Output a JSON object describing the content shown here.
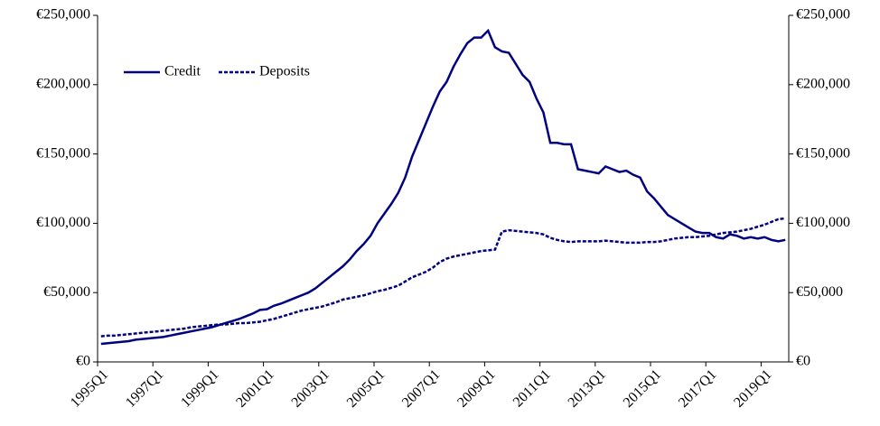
{
  "chart_data": {
    "type": "line",
    "categories": [
      "1995Q1",
      null,
      null,
      null,
      null,
      null,
      null,
      null,
      "1997Q1",
      null,
      null,
      null,
      null,
      null,
      null,
      null,
      "1999Q1",
      null,
      null,
      null,
      null,
      null,
      null,
      null,
      "2001Q1",
      null,
      null,
      null,
      null,
      null,
      null,
      null,
      "2003Q1",
      null,
      null,
      null,
      null,
      null,
      null,
      null,
      "2005Q1",
      null,
      null,
      null,
      null,
      null,
      null,
      null,
      "2007Q1",
      null,
      null,
      null,
      null,
      null,
      null,
      null,
      "2009Q1",
      null,
      null,
      null,
      null,
      null,
      null,
      null,
      "2011Q1",
      null,
      null,
      null,
      null,
      null,
      null,
      null,
      "2013Q1",
      null,
      null,
      null,
      null,
      null,
      null,
      null,
      "2015Q1",
      null,
      null,
      null,
      null,
      null,
      null,
      null,
      "2017Q1",
      null,
      null,
      null,
      null,
      null,
      null,
      null,
      "2019Q1",
      null,
      null,
      null
    ],
    "series": [
      {
        "name": "Credit",
        "color": "#000080",
        "dash": false,
        "values": [
          13000,
          13500,
          14000,
          14500,
          15000,
          16000,
          16500,
          17000,
          17500,
          18000,
          19000,
          20000,
          21000,
          22000,
          23000,
          24000,
          25000,
          26500,
          28000,
          29500,
          31000,
          33000,
          35000,
          37500,
          38000,
          40500,
          42000,
          44000,
          46000,
          48000,
          50000,
          53000,
          57000,
          61000,
          65000,
          69000,
          74000,
          80000,
          85000,
          91000,
          100000,
          107000,
          114000,
          122000,
          133000,
          148000,
          160000,
          172000,
          184000,
          195000,
          202000,
          213000,
          222000,
          230000,
          234000,
          234000,
          239000,
          227000,
          224000,
          223000,
          215000,
          207000,
          202000,
          190000,
          180000,
          158000,
          158000,
          157000,
          157000,
          139000,
          138000,
          137000,
          136000,
          141000,
          139000,
          137000,
          138000,
          135000,
          133000,
          123000,
          118000,
          112000,
          106000,
          103000,
          100000,
          97000,
          94000,
          93000,
          93000,
          90000,
          89000,
          92000,
          91000,
          89000,
          90000,
          89000,
          90000,
          88000,
          87000,
          88000
        ]
      },
      {
        "name": "Deposits",
        "color": "#000080",
        "dash": true,
        "values": [
          18500,
          19000,
          19000,
          19500,
          20000,
          20500,
          21000,
          21500,
          22000,
          22500,
          23000,
          23500,
          24000,
          25000,
          25500,
          26000,
          26500,
          27000,
          27000,
          27500,
          28000,
          28000,
          28500,
          29000,
          30000,
          31000,
          32500,
          34000,
          35500,
          37000,
          38000,
          39000,
          40000,
          41500,
          43000,
          45000,
          46000,
          47000,
          48000,
          49500,
          51000,
          52000,
          53500,
          55000,
          58000,
          61000,
          63000,
          65000,
          68000,
          72000,
          74500,
          76000,
          77000,
          78000,
          79000,
          80000,
          80500,
          81000,
          94000,
          95000,
          94500,
          94000,
          93500,
          93000,
          92000,
          89500,
          88000,
          87000,
          86500,
          87000,
          87000,
          87000,
          87000,
          87500,
          87000,
          86500,
          86000,
          86000,
          86000,
          86500,
          86500,
          87000,
          88000,
          89000,
          89500,
          90000,
          90000,
          90500,
          91000,
          92000,
          93000,
          93500,
          94000,
          95000,
          96000,
          97500,
          99000,
          101000,
          103000,
          103500
        ]
      }
    ],
    "ylim": [
      0,
      250000
    ],
    "yticks": [
      {
        "value": 0,
        "label": "€0"
      },
      {
        "value": 50000,
        "label": "€50,000"
      },
      {
        "value": 100000,
        "label": "€100,000"
      },
      {
        "value": 150000,
        "label": "€150,000"
      },
      {
        "value": 200000,
        "label": "€200,000"
      },
      {
        "value": 250000,
        "label": "€250,000"
      }
    ],
    "y2lim": [
      0,
      250000
    ],
    "y2ticks": [
      {
        "value": 0,
        "label": "€0"
      },
      {
        "value": 50000,
        "label": "€50,000"
      },
      {
        "value": 100000,
        "label": "€100,000"
      },
      {
        "value": 150000,
        "label": "€150,000"
      },
      {
        "value": 200000,
        "label": "€200,000"
      },
      {
        "value": 250000,
        "label": "€250,000"
      }
    ],
    "legend": "upper left"
  }
}
